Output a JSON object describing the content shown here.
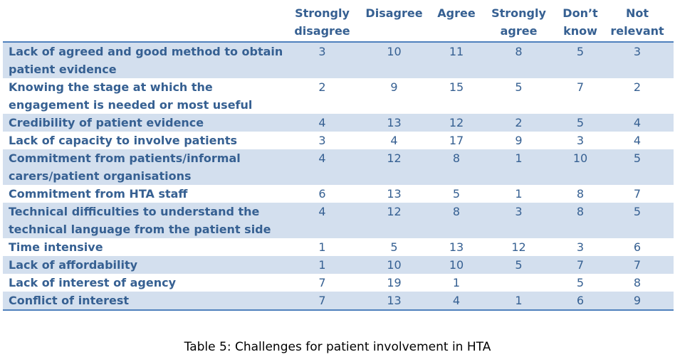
{
  "table": {
    "headers": [
      "",
      "Strongly disagree",
      "Disagree",
      "Agree",
      "Strongly agree",
      "Don’t know",
      "Not relevant"
    ],
    "rows": [
      {
        "label": "Lack of agreed and good method to obtain patient evidence",
        "values": [
          "3",
          "10",
          "11",
          "8",
          "5",
          "3"
        ]
      },
      {
        "label": "Knowing the stage at which the engagement is needed or most useful",
        "values": [
          "2",
          "9",
          "15",
          "5",
          "7",
          "2"
        ]
      },
      {
        "label": "Credibility of patient evidence",
        "values": [
          "4",
          "13",
          "12",
          "2",
          "5",
          "4"
        ]
      },
      {
        "label": "Lack of capacity to involve patients",
        "values": [
          "3",
          "4",
          "17",
          "9",
          "3",
          "4"
        ]
      },
      {
        "label": "Commitment from patients/informal carers/patient organisations",
        "values": [
          "4",
          "12",
          "8",
          "1",
          "10",
          "5"
        ]
      },
      {
        "label": "Commitment from HTA staff",
        "values": [
          "6",
          "13",
          "5",
          "1",
          "8",
          "7"
        ]
      },
      {
        "label": "Technical difficulties to understand the technical language from the patient side",
        "values": [
          "4",
          "12",
          "8",
          "3",
          "8",
          "5"
        ]
      },
      {
        "label": "Time intensive",
        "values": [
          "1",
          "5",
          "13",
          "12",
          "3",
          "6"
        ]
      },
      {
        "label": "Lack of affordability",
        "values": [
          "1",
          "10",
          "10",
          "5",
          "7",
          "7"
        ]
      },
      {
        "label": "Lack of interest of agency",
        "values": [
          "7",
          "19",
          "1",
          "",
          "5",
          "8"
        ]
      },
      {
        "label": "Conflict of interest",
        "values": [
          "7",
          "13",
          "4",
          "1",
          "6",
          "9"
        ]
      }
    ]
  },
  "caption": "Table 5: Challenges for patient involvement in HTA",
  "colors": {
    "text": "#366092",
    "rule": "#4f81bd",
    "band": "#d3dfee"
  }
}
